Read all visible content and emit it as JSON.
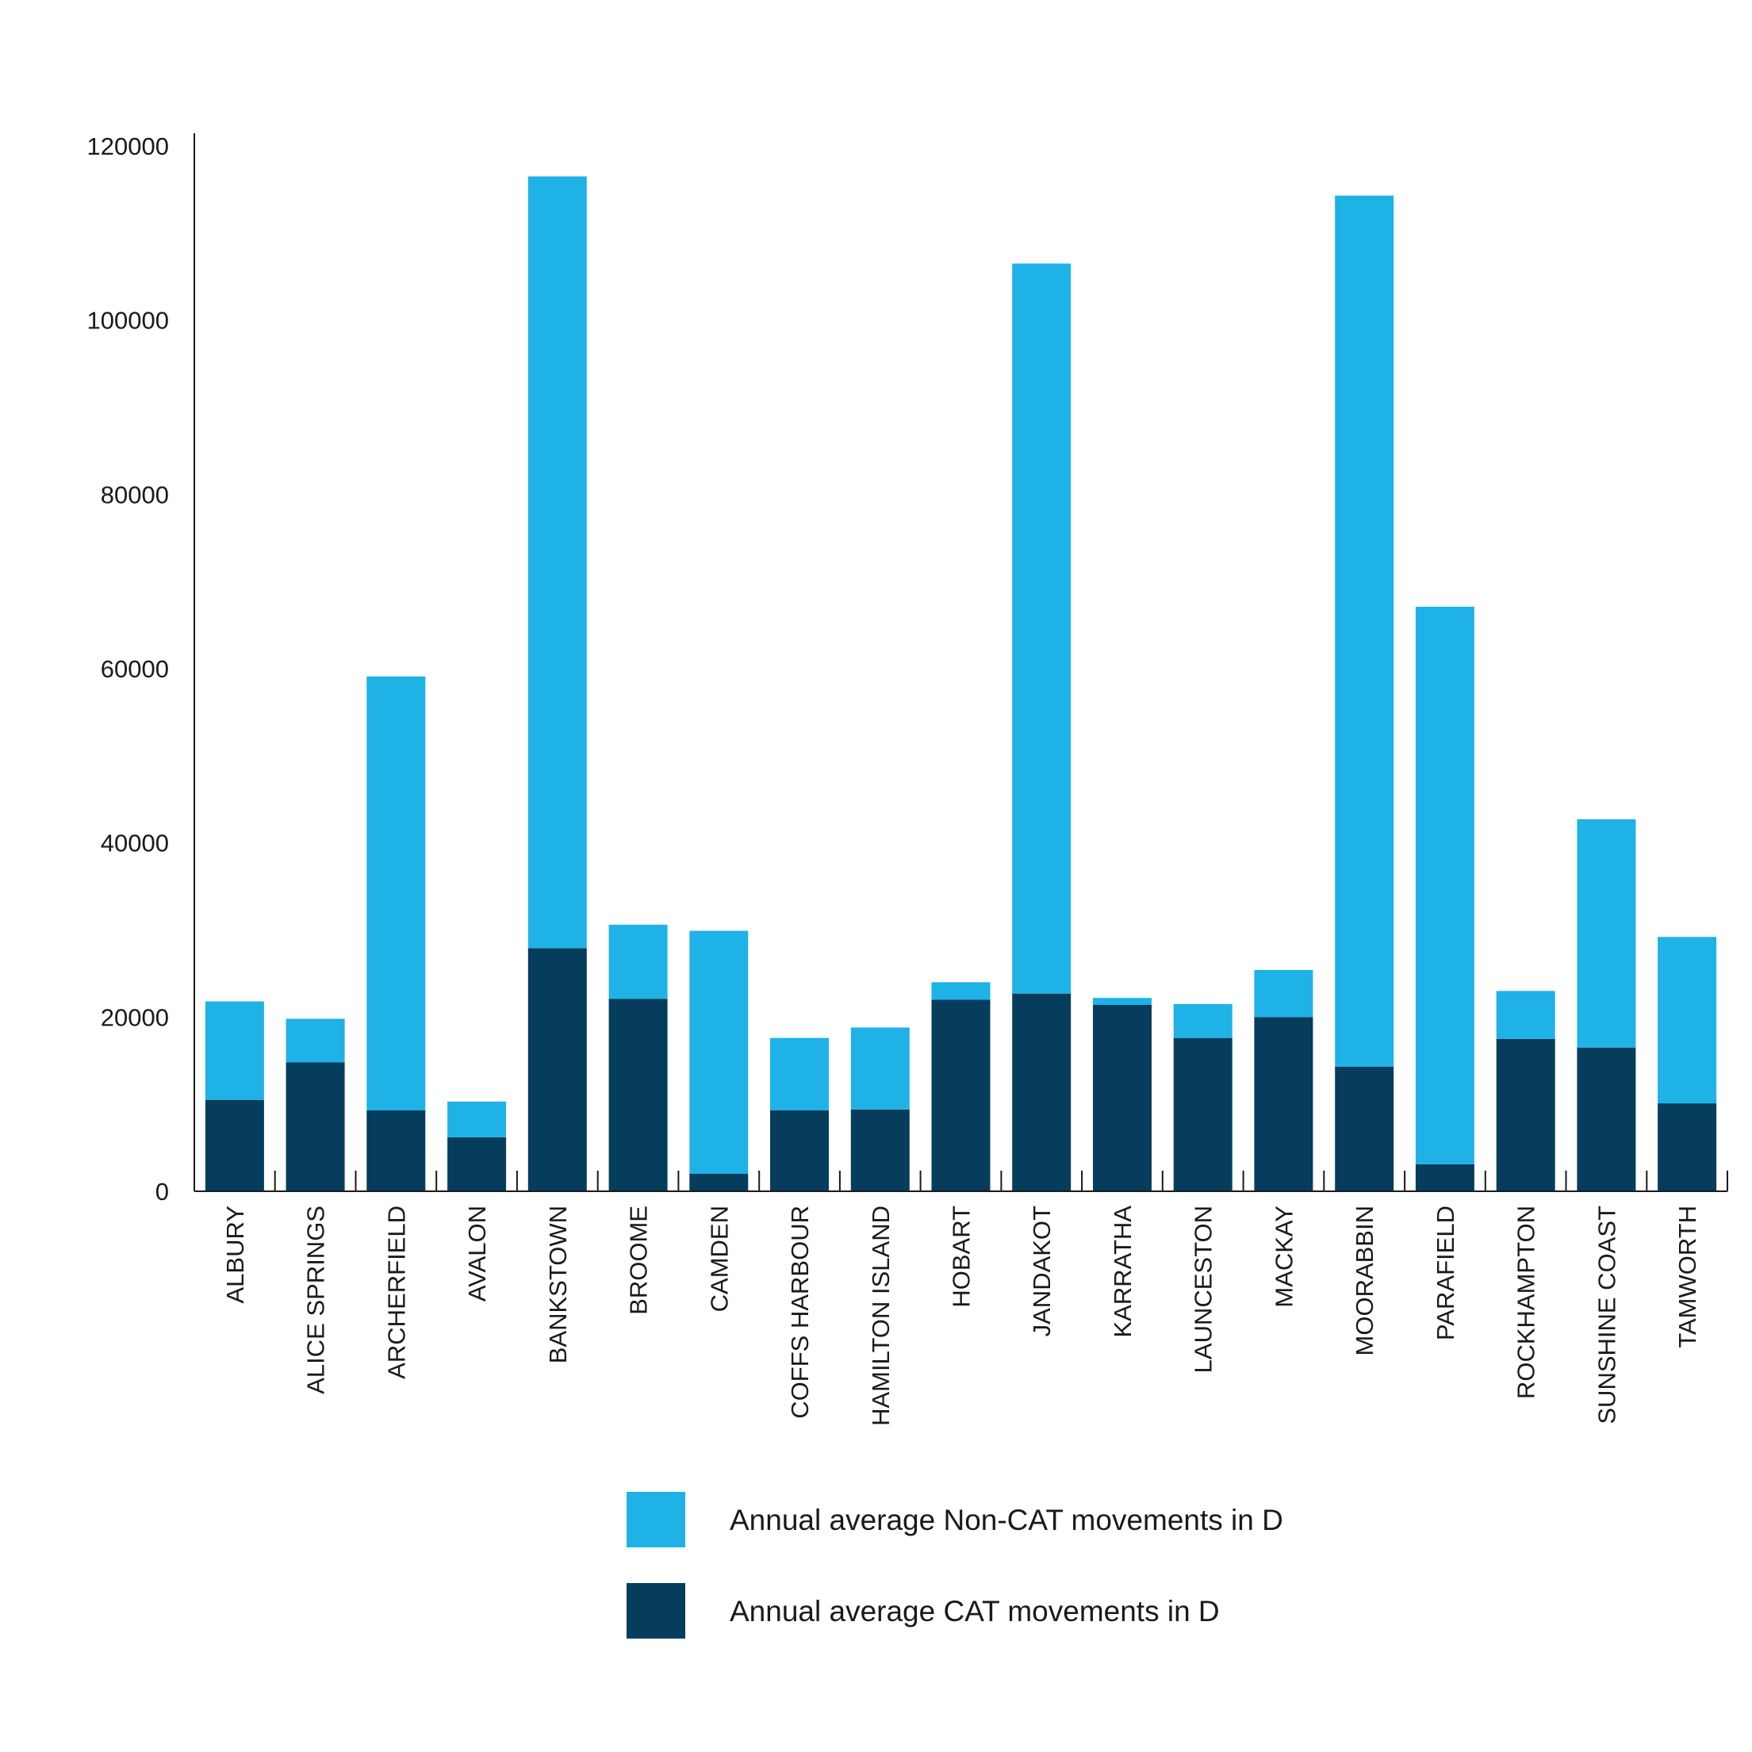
{
  "chart_data": {
    "type": "bar",
    "stacked": true,
    "title": "",
    "xlabel": "",
    "ylabel": "",
    "ylim": [
      0,
      120000
    ],
    "yticks": [
      0,
      20000,
      40000,
      60000,
      80000,
      100000,
      120000
    ],
    "grid": false,
    "legend_position": "bottom-center",
    "categories": [
      "ALBURY",
      "ALICE SPRINGS",
      "ARCHERFIELD",
      "AVALON",
      "BANKSTOWN",
      "BROOME",
      "CAMDEN",
      "COFFS HARBOUR",
      "HAMILTON ISLAND",
      "HOBART",
      "JANDAKOT",
      "KARRATHA",
      "LAUNCESTON",
      "MACKAY",
      "MOORABBIN",
      "PARAFIELD",
      "ROCKHAMPTON",
      "SUNSHINE COAST",
      "TAMWORTH"
    ],
    "series": [
      {
        "name": "Annual average CAT movements in D",
        "color": "#063d5c",
        "values": [
          10500,
          14800,
          9300,
          6200,
          27900,
          22100,
          2000,
          9300,
          9400,
          22000,
          22700,
          21400,
          17600,
          20000,
          14300,
          3100,
          17500,
          16500,
          10100
        ]
      },
      {
        "name": "Annual average Non-CAT movements in D",
        "color": "#1fb2e6",
        "values": [
          11300,
          5000,
          49800,
          4100,
          88600,
          8500,
          27900,
          8300,
          9400,
          2000,
          83800,
          800,
          3900,
          5400,
          100000,
          64000,
          5500,
          26200,
          19100
        ]
      }
    ]
  }
}
